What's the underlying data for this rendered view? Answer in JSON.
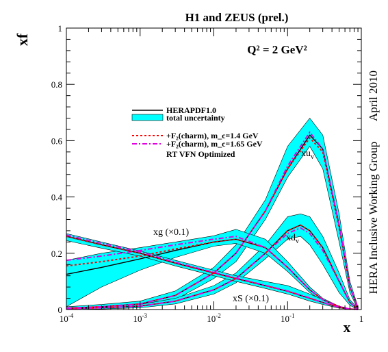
{
  "chart_data": {
    "type": "line",
    "title": "H1 and ZEUS (prel.)",
    "annotation_q2": "Q² = 2 GeV²",
    "ylabel": "xf",
    "xlabel": "x",
    "xscale": "log",
    "xlim": [
      0.0001,
      1
    ],
    "ylim": [
      0,
      1
    ],
    "x_ticks": [
      {
        "value": 0.0001,
        "label_base": "10",
        "label_exp": "-4"
      },
      {
        "value": 0.001,
        "label_base": "10",
        "label_exp": "-3"
      },
      {
        "value": 0.01,
        "label_base": "10",
        "label_exp": "-2"
      },
      {
        "value": 0.1,
        "label_base": "10",
        "label_exp": "-1"
      },
      {
        "value": 1,
        "label_base": "1",
        "label_exp": ""
      }
    ],
    "y_ticks": [
      0,
      0.2,
      0.4,
      0.6,
      0.8,
      1
    ],
    "y_tick_labels": [
      "0",
      "0.2",
      "0.4",
      "0.6",
      "0.8",
      "1"
    ],
    "legend": {
      "position": "upper-left-center",
      "entries": [
        {
          "label": "HERAPDF1.0",
          "style": "solid-black"
        },
        {
          "label": "total uncertainty",
          "style": "cyan-band"
        },
        {
          "label": "+F₂(charm), m_c=1.4 GeV",
          "style": "dotted-red"
        },
        {
          "label": "+F₂(charm), m_c=1.65 GeV",
          "style": "dashdot-magenta"
        },
        {
          "label": "RT VFN Optimized",
          "style": "text"
        }
      ]
    },
    "curve_labels": [
      {
        "text": "xu",
        "sub": "v"
      },
      {
        "text": "xd",
        "sub": "v"
      },
      {
        "text": "xg (×0.1)",
        "sub": ""
      },
      {
        "text": "xS (×0.1)",
        "sub": ""
      }
    ],
    "side_labels": [
      "April 2010",
      "HERA Inclusive Working Group"
    ],
    "series": [
      {
        "key": "xuv",
        "x": [
          0.0001,
          0.0003,
          0.001,
          0.003,
          0.01,
          0.02,
          0.05,
          0.1,
          0.2,
          0.3,
          0.5,
          0.7,
          0.9
        ],
        "central": [
          0.005,
          0.01,
          0.02,
          0.05,
          0.13,
          0.2,
          0.35,
          0.5,
          0.62,
          0.57,
          0.3,
          0.08,
          0.005
        ],
        "band_low": [
          0.0,
          0.004,
          0.012,
          0.035,
          0.11,
          0.17,
          0.32,
          0.47,
          0.58,
          0.5,
          0.24,
          0.06,
          0.0
        ],
        "band_high": [
          0.01,
          0.018,
          0.03,
          0.066,
          0.15,
          0.23,
          0.39,
          0.58,
          0.68,
          0.62,
          0.34,
          0.1,
          0.01
        ],
        "red": [
          0.005,
          0.01,
          0.02,
          0.05,
          0.13,
          0.2,
          0.35,
          0.5,
          0.61,
          0.56,
          0.29,
          0.08,
          0.005
        ],
        "magenta": [
          0.005,
          0.01,
          0.02,
          0.05,
          0.13,
          0.2,
          0.35,
          0.51,
          0.63,
          0.57,
          0.3,
          0.08,
          0.005
        ]
      },
      {
        "key": "xdv",
        "x": [
          0.0001,
          0.0003,
          0.001,
          0.003,
          0.01,
          0.02,
          0.05,
          0.1,
          0.15,
          0.2,
          0.3,
          0.5,
          0.7,
          0.9
        ],
        "central": [
          0.003,
          0.006,
          0.012,
          0.03,
          0.07,
          0.11,
          0.2,
          0.28,
          0.3,
          0.28,
          0.22,
          0.1,
          0.025,
          0.002
        ],
        "band_low": [
          0.0,
          0.002,
          0.006,
          0.02,
          0.055,
          0.095,
          0.18,
          0.25,
          0.26,
          0.23,
          0.16,
          0.06,
          0.015,
          0.0
        ],
        "band_high": [
          0.006,
          0.01,
          0.018,
          0.04,
          0.085,
          0.13,
          0.23,
          0.33,
          0.34,
          0.33,
          0.26,
          0.13,
          0.035,
          0.004
        ],
        "red": [
          0.003,
          0.006,
          0.012,
          0.03,
          0.07,
          0.11,
          0.2,
          0.28,
          0.3,
          0.28,
          0.22,
          0.1,
          0.025,
          0.002
        ],
        "magenta": [
          0.003,
          0.006,
          0.012,
          0.03,
          0.07,
          0.11,
          0.2,
          0.27,
          0.29,
          0.27,
          0.21,
          0.1,
          0.025,
          0.002
        ]
      },
      {
        "key": "xg",
        "x": [
          0.0001,
          0.0003,
          0.001,
          0.003,
          0.01,
          0.02,
          0.05,
          0.1,
          0.2,
          0.3,
          0.5,
          0.7,
          0.9
        ],
        "central": [
          0.125,
          0.15,
          0.18,
          0.21,
          0.24,
          0.25,
          0.22,
          0.15,
          0.07,
          0.035,
          0.01,
          0.002,
          0.0
        ],
        "band_low": [
          0.01,
          0.08,
          0.14,
          0.185,
          0.225,
          0.235,
          0.2,
          0.135,
          0.06,
          0.03,
          0.008,
          0.001,
          0.0
        ],
        "band_high": [
          0.175,
          0.2,
          0.22,
          0.24,
          0.262,
          0.285,
          0.25,
          0.17,
          0.08,
          0.04,
          0.012,
          0.003,
          0.0
        ],
        "red": [
          0.155,
          0.17,
          0.19,
          0.215,
          0.24,
          0.25,
          0.22,
          0.15,
          0.07,
          0.035,
          0.01,
          0.002,
          0.0
        ],
        "magenta": [
          0.175,
          0.19,
          0.21,
          0.23,
          0.25,
          0.26,
          0.22,
          0.15,
          0.07,
          0.035,
          0.01,
          0.002,
          0.0
        ]
      },
      {
        "key": "xS",
        "x": [
          0.0001,
          0.0003,
          0.001,
          0.003,
          0.01,
          0.02,
          0.05,
          0.1,
          0.2,
          0.3,
          0.5,
          0.7,
          0.9
        ],
        "central": [
          0.26,
          0.23,
          0.2,
          0.165,
          0.13,
          0.11,
          0.085,
          0.065,
          0.04,
          0.025,
          0.008,
          0.002,
          0.0
        ],
        "band_low": [
          0.245,
          0.218,
          0.19,
          0.155,
          0.12,
          0.1,
          0.075,
          0.055,
          0.03,
          0.018,
          0.005,
          0.001,
          0.0
        ],
        "band_high": [
          0.27,
          0.24,
          0.208,
          0.175,
          0.14,
          0.12,
          0.1,
          0.085,
          0.055,
          0.035,
          0.012,
          0.003,
          0.0
        ],
        "red": [
          0.26,
          0.23,
          0.2,
          0.165,
          0.13,
          0.11,
          0.085,
          0.065,
          0.04,
          0.025,
          0.008,
          0.002,
          0.0
        ],
        "magenta": [
          0.265,
          0.235,
          0.205,
          0.168,
          0.132,
          0.112,
          0.086,
          0.066,
          0.041,
          0.025,
          0.008,
          0.002,
          0.0
        ]
      }
    ]
  },
  "colors": {
    "band": "#00ffff",
    "central": "#000000",
    "red": "#ff0000",
    "magenta": "#e000e0"
  }
}
